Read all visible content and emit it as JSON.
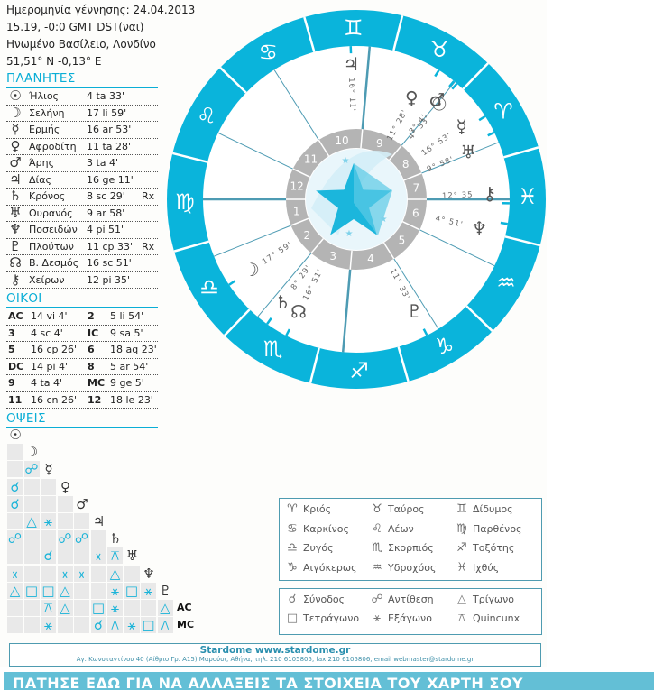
{
  "header": {
    "birth_date_line": "Ημερομηνία γέννησης: 24.04.2013",
    "time_line": "15.19, -0:0 GMT DST(ναι)",
    "place_line": "Ηνωμένο Βασίλειο, Λονδίνο",
    "coords_line": "51,51° N  -0,13° E"
  },
  "planets": {
    "title": "ΠΛΑΝΗΤΕΣ",
    "rows": [
      {
        "icon": "sun-icon",
        "glyph": "☉",
        "name": "Ήλιος",
        "pos": "4 ta 33'",
        "rx": ""
      },
      {
        "icon": "moon-icon",
        "glyph": "☽",
        "name": "Σελήνη",
        "pos": "17 li 59'",
        "rx": ""
      },
      {
        "icon": "mercury-icon",
        "glyph": "☿",
        "name": "Ερμής",
        "pos": "16 ar 53'",
        "rx": ""
      },
      {
        "icon": "venus-icon",
        "glyph": "♀",
        "name": "Αφροδίτη",
        "pos": "11 ta 28'",
        "rx": ""
      },
      {
        "icon": "mars-icon",
        "glyph": "♂",
        "name": "Άρης",
        "pos": "3 ta 4'",
        "rx": ""
      },
      {
        "icon": "jupiter-icon",
        "glyph": "♃",
        "name": "Δίας",
        "pos": "16 ge 11'",
        "rx": ""
      },
      {
        "icon": "saturn-icon",
        "glyph": "♄",
        "name": "Κρόνος",
        "pos": "8 sc 29'",
        "rx": "Rx"
      },
      {
        "icon": "uranus-icon",
        "glyph": "♅",
        "name": "Ουρανός",
        "pos": "9 ar 58'",
        "rx": ""
      },
      {
        "icon": "neptune-icon",
        "glyph": "♆",
        "name": "Ποσειδών",
        "pos": "4 pi 51'",
        "rx": ""
      },
      {
        "icon": "pluto-icon",
        "glyph": "♇",
        "name": "Πλούτων",
        "pos": "11 cp 33'",
        "rx": "Rx"
      },
      {
        "icon": "north-node-icon",
        "glyph": "☊",
        "name": "Β. Δεσμός",
        "pos": "16 sc 51'",
        "rx": ""
      },
      {
        "icon": "chiron-icon",
        "glyph": "⚷",
        "name": "Χείρων",
        "pos": "12 pi 35'",
        "rx": ""
      }
    ]
  },
  "houses": {
    "title": "ΟΙΚΟΙ",
    "rows": [
      [
        {
          "label": "AC",
          "value": "14 vi 4'"
        },
        {
          "label": "2",
          "value": "5 li 54'"
        }
      ],
      [
        {
          "label": "3",
          "value": "4 sc 4'"
        },
        {
          "label": "IC",
          "value": "9 sa 5'"
        }
      ],
      [
        {
          "label": "5",
          "value": "16 cp 26'"
        },
        {
          "label": "6",
          "value": "18 aq 23'"
        }
      ],
      [
        {
          "label": "DC",
          "value": "14 pi 4'"
        },
        {
          "label": "8",
          "value": "5 ar 54'"
        }
      ],
      [
        {
          "label": "9",
          "value": "4 ta 4'"
        },
        {
          "label": "MC",
          "value": "9 ge 5'"
        }
      ],
      [
        {
          "label": "11",
          "value": "16 cn 26'"
        },
        {
          "label": "12",
          "value": "18 le 23'"
        }
      ]
    ]
  },
  "aspects": {
    "title": "ΟΨΕΙΣ",
    "heads": [
      "☉",
      "☽",
      "☿",
      "♀",
      "♂",
      "♃",
      "♄",
      "♅",
      "♆",
      "♇",
      "AC",
      "MC"
    ],
    "symbols": {
      "conj": "☌",
      "opp": "☍",
      "tri": "△",
      "sq": "□",
      "sex": "⚹",
      "qnc": "⚻",
      "": ""
    },
    "rows": [
      [
        ""
      ],
      [
        "",
        "opp"
      ],
      [
        "conj",
        "",
        ""
      ],
      [
        "conj",
        "",
        "",
        ""
      ],
      [
        "",
        "tri",
        "sex",
        "",
        ""
      ],
      [
        "opp",
        "",
        "",
        "opp",
        "opp",
        ""
      ],
      [
        "",
        "",
        "conj",
        "",
        "",
        "sex",
        "qnc"
      ],
      [
        "sex",
        "",
        "",
        "sex",
        "sex",
        "",
        "tri",
        ""
      ],
      [
        "tri",
        "sq",
        "sq",
        "tri",
        "",
        "",
        "sex",
        "sq",
        "sex"
      ],
      [
        "",
        "",
        "qnc",
        "tri",
        "",
        "sq",
        "sex",
        "",
        "",
        "tri"
      ],
      [
        "",
        "",
        "sex",
        "",
        "",
        "conj",
        "qnc",
        "sex",
        "sq",
        "qnc"
      ]
    ]
  },
  "wheel": {
    "colors": {
      "band": "#0ab4db",
      "house_ring": "#b4b4b4",
      "cusp_line": "#4d9bb3",
      "glyph": "#555555"
    },
    "asc_longitude": 164.07,
    "signs": [
      "♈",
      "♉",
      "♊",
      "♋",
      "♌",
      "♍",
      "♎",
      "♏",
      "♐",
      "♑",
      "♒",
      "♓"
    ],
    "house_cusps": [
      164.07,
      185.9,
      214.07,
      249.08,
      286.43,
      318.38,
      344.07,
      5.9,
      34.07,
      69.08,
      106.43,
      138.38
    ],
    "house_numbers": [
      "1",
      "2",
      "3",
      "4",
      "5",
      "6",
      "7",
      "8",
      "9",
      "10",
      "11",
      "12"
    ],
    "planets": [
      {
        "name": "sun",
        "glyph": "☉",
        "lon": 34.55,
        "label": "4° 33'"
      },
      {
        "name": "moon",
        "glyph": "☽",
        "lon": 197.98,
        "label": "17° 59'"
      },
      {
        "name": "mercury",
        "glyph": "☿",
        "lon": 16.88,
        "label": "16° 53'"
      },
      {
        "name": "venus",
        "glyph": "♀",
        "lon": 41.47,
        "label": "11° 28'"
      },
      {
        "name": "mars",
        "glyph": "♂",
        "lon": 33.07,
        "label": "3° 4'"
      },
      {
        "name": "jupiter",
        "glyph": "♃",
        "lon": 76.18,
        "label": "16° 11'"
      },
      {
        "name": "saturn",
        "glyph": "♄",
        "lon": 218.48,
        "label": "8° 29'"
      },
      {
        "name": "uranus",
        "glyph": "♅",
        "lon": 9.97,
        "label": "9° 58'"
      },
      {
        "name": "neptune",
        "glyph": "♆",
        "lon": 334.85,
        "label": "4° 51'"
      },
      {
        "name": "pluto",
        "glyph": "♇",
        "lon": 281.55,
        "label": "11° 33'"
      },
      {
        "name": "north-node",
        "glyph": "☊",
        "lon": 226.85,
        "label": "16° 51'"
      },
      {
        "name": "chiron",
        "glyph": "⚷",
        "lon": 342.58,
        "label": "12° 35'"
      }
    ]
  },
  "sign_legend": [
    {
      "glyph": "♈",
      "name": "Κριός"
    },
    {
      "glyph": "♉",
      "name": "Ταύρος"
    },
    {
      "glyph": "♊",
      "name": "Δίδυμος"
    },
    {
      "glyph": "♋",
      "name": "Καρκίνος"
    },
    {
      "glyph": "♌",
      "name": "Λέων"
    },
    {
      "glyph": "♍",
      "name": "Παρθένος"
    },
    {
      "glyph": "♎",
      "name": "Ζυγός"
    },
    {
      "glyph": "♏",
      "name": "Σκορπιός"
    },
    {
      "glyph": "♐",
      "name": "Τοξότης"
    },
    {
      "glyph": "♑",
      "name": "Αιγόκερως"
    },
    {
      "glyph": "♒",
      "name": "Υδροχόος"
    },
    {
      "glyph": "♓",
      "name": "Ιχθύς"
    }
  ],
  "aspect_legend": [
    {
      "glyph": "☌",
      "name": "Σύνοδος"
    },
    {
      "glyph": "☍",
      "name": "Αντίθεση"
    },
    {
      "glyph": "△",
      "name": "Τρίγωνο"
    },
    {
      "glyph": "□",
      "name": "Τετράγωνο"
    },
    {
      "glyph": "⚹",
      "name": "Εξάγωνο"
    },
    {
      "glyph": "⚻",
      "name": "Quincunx"
    }
  ],
  "footer": {
    "brand": "Stardome www.stardome.gr",
    "address": "Αγ. Κωνσταντίνου 40 (Αίθριο Γρ. Α15) Μαρούσι, Αθήνα, τηλ. 210 6105805, fax 210 6105806, email webmaster@stardome.gr"
  },
  "banner": {
    "label": "ΠΑΤΗΣΕ ΕΔΩ ΓΙΑ ΝΑ ΑΛΛΑΞΕΙΣ ΤΑ ΣΤΟΙΧΕΙΑ ΤΟΥ ΧΑΡΤΗ ΣΟΥ"
  }
}
